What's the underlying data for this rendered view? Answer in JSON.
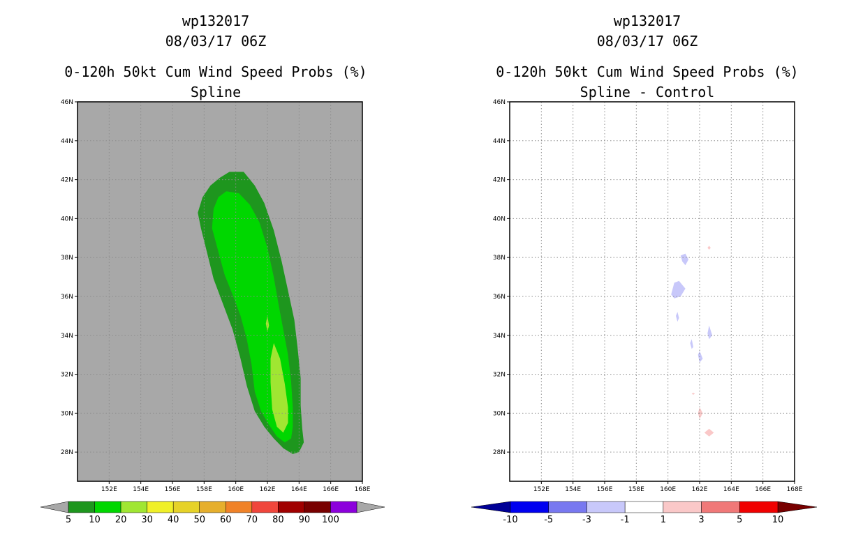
{
  "chart_data": [
    {
      "type": "heatmap",
      "storm_id": "wp132017",
      "datetime": "08/03/17 06Z",
      "title": "0-120h 50kt Cum Wind Speed Probs (%)",
      "subtitle": "Spline",
      "xlim": [
        150,
        168
      ],
      "ylim": [
        26.5,
        46
      ],
      "x_ticks": [
        {
          "value": 152,
          "label": "152E"
        },
        {
          "value": 154,
          "label": "154E"
        },
        {
          "value": 156,
          "label": "156E"
        },
        {
          "value": 158,
          "label": "158E"
        },
        {
          "value": 160,
          "label": "160E"
        },
        {
          "value": 162,
          "label": "162E"
        },
        {
          "value": 164,
          "label": "164E"
        },
        {
          "value": 166,
          "label": "166E"
        },
        {
          "value": 168,
          "label": "168E"
        }
      ],
      "y_ticks": [
        {
          "value": 28,
          "label": "28N"
        },
        {
          "value": 30,
          "label": "30N"
        },
        {
          "value": 32,
          "label": "32N"
        },
        {
          "value": 34,
          "label": "34N"
        },
        {
          "value": 36,
          "label": "36N"
        },
        {
          "value": 38,
          "label": "38N"
        },
        {
          "value": 40,
          "label": "40N"
        },
        {
          "value": 42,
          "label": "42N"
        },
        {
          "value": 44,
          "label": "44N"
        },
        {
          "value": 46,
          "label": "46N"
        }
      ],
      "background_color": "#a8a8a8",
      "regions": [
        {
          "level": "5-10",
          "color": "#1e961e",
          "points": [
            [
              159.6,
              42.4
            ],
            [
              160.5,
              42.4
            ],
            [
              161.2,
              41.7
            ],
            [
              161.8,
              40.8
            ],
            [
              162.4,
              39.4
            ],
            [
              162.9,
              37.8
            ],
            [
              163.3,
              36.3
            ],
            [
              163.7,
              34.8
            ],
            [
              163.9,
              33.4
            ],
            [
              164.1,
              31.8
            ],
            [
              164.1,
              30.4
            ],
            [
              164.2,
              29.2
            ],
            [
              164.3,
              28.5
            ],
            [
              164.0,
              28.0
            ],
            [
              163.6,
              27.9
            ],
            [
              163.0,
              28.2
            ],
            [
              162.4,
              28.7
            ],
            [
              161.8,
              29.3
            ],
            [
              161.2,
              30.1
            ],
            [
              160.7,
              31.4
            ],
            [
              160.3,
              32.8
            ],
            [
              159.8,
              34.3
            ],
            [
              159.2,
              35.6
            ],
            [
              158.6,
              36.9
            ],
            [
              158.2,
              38.2
            ],
            [
              157.8,
              39.5
            ],
            [
              157.6,
              40.3
            ],
            [
              157.9,
              41.1
            ],
            [
              158.4,
              41.7
            ],
            [
              159.0,
              42.1
            ]
          ]
        },
        {
          "level": "10-20",
          "color": "#00d700",
          "points": [
            [
              159.4,
              41.4
            ],
            [
              160.2,
              41.3
            ],
            [
              160.9,
              40.7
            ],
            [
              161.5,
              39.8
            ],
            [
              162.0,
              38.5
            ],
            [
              162.4,
              37.0
            ],
            [
              162.7,
              35.6
            ],
            [
              163.0,
              34.3
            ],
            [
              163.3,
              33.0
            ],
            [
              163.5,
              31.6
            ],
            [
              163.6,
              30.3
            ],
            [
              163.6,
              29.3
            ],
            [
              163.5,
              28.7
            ],
            [
              163.1,
              28.5
            ],
            [
              162.6,
              28.8
            ],
            [
              162.1,
              29.4
            ],
            [
              161.6,
              30.1
            ],
            [
              161.2,
              31.1
            ],
            [
              161.0,
              32.5
            ],
            [
              160.7,
              33.8
            ],
            [
              160.3,
              35.0
            ],
            [
              159.8,
              36.1
            ],
            [
              159.3,
              37.1
            ],
            [
              158.9,
              38.3
            ],
            [
              158.5,
              39.5
            ],
            [
              158.6,
              40.5
            ],
            [
              158.9,
              41.1
            ]
          ]
        },
        {
          "level": "20-30",
          "color": "#a0e632",
          "points": [
            [
              162.4,
              33.6
            ],
            [
              162.8,
              32.8
            ],
            [
              163.1,
              31.5
            ],
            [
              163.3,
              30.3
            ],
            [
              163.3,
              29.5
            ],
            [
              163.0,
              29.0
            ],
            [
              162.6,
              29.3
            ],
            [
              162.3,
              30.2
            ],
            [
              162.2,
              31.6
            ],
            [
              162.2,
              32.8
            ]
          ]
        },
        {
          "level": "20-30",
          "color": "#a0e632",
          "points": [
            [
              162.0,
              35.0
            ],
            [
              162.1,
              34.5
            ],
            [
              162.0,
              34.2
            ],
            [
              161.9,
              34.6
            ]
          ]
        }
      ],
      "colorbar": {
        "labels": [
          "5",
          "10",
          "20",
          "30",
          "40",
          "50",
          "60",
          "70",
          "80",
          "90",
          "100"
        ],
        "colors": [
          "#1e961e",
          "#00d700",
          "#a0e632",
          "#f0f028",
          "#e6d228",
          "#e6af2d",
          "#f08228",
          "#f0463c",
          "#a00000",
          "#780000",
          "#8c00dc"
        ],
        "end_color": "#a8a8a8"
      }
    },
    {
      "type": "heatmap",
      "storm_id": "wp132017",
      "datetime": "08/03/17 06Z",
      "title": "0-120h 50kt Cum Wind Speed Probs (%)",
      "subtitle": "Spline - Control",
      "xlim": [
        150,
        168
      ],
      "ylim": [
        26.5,
        46
      ],
      "x_ticks": [
        {
          "value": 152,
          "label": "152E"
        },
        {
          "value": 154,
          "label": "154E"
        },
        {
          "value": 156,
          "label": "156E"
        },
        {
          "value": 158,
          "label": "158E"
        },
        {
          "value": 160,
          "label": "160E"
        },
        {
          "value": 162,
          "label": "162E"
        },
        {
          "value": 164,
          "label": "164E"
        },
        {
          "value": 166,
          "label": "166E"
        },
        {
          "value": 168,
          "label": "168E"
        }
      ],
      "y_ticks": [
        {
          "value": 28,
          "label": "28N"
        },
        {
          "value": 30,
          "label": "30N"
        },
        {
          "value": 32,
          "label": "32N"
        },
        {
          "value": 34,
          "label": "34N"
        },
        {
          "value": 36,
          "label": "36N"
        },
        {
          "value": 38,
          "label": "38N"
        },
        {
          "value": 40,
          "label": "40N"
        },
        {
          "value": 42,
          "label": "42N"
        },
        {
          "value": 44,
          "label": "44N"
        },
        {
          "value": 46,
          "label": "46N"
        }
      ],
      "background_color": "#ffffff",
      "grid": true,
      "regions": [
        {
          "level": "-3 to -1",
          "color": "#c8c8fa",
          "points": [
            [
              160.8,
              38.1
            ],
            [
              161.1,
              38.2
            ],
            [
              161.3,
              37.9
            ],
            [
              161.1,
              37.6
            ],
            [
              160.9,
              37.8
            ]
          ]
        },
        {
          "level": "-3 to -1",
          "color": "#c8c8fa",
          "points": [
            [
              160.2,
              36.1
            ],
            [
              160.4,
              36.7
            ],
            [
              160.7,
              36.8
            ],
            [
              161.1,
              36.4
            ],
            [
              160.8,
              36.0
            ],
            [
              160.4,
              35.9
            ]
          ]
        },
        {
          "level": "-3 to -1",
          "color": "#c8c8fa",
          "points": [
            [
              160.5,
              35.0
            ],
            [
              160.6,
              35.2
            ],
            [
              160.7,
              34.9
            ],
            [
              160.6,
              34.7
            ]
          ]
        },
        {
          "level": "-3 to -1",
          "color": "#c8c8fa",
          "points": [
            [
              162.5,
              34.1
            ],
            [
              162.6,
              34.5
            ],
            [
              162.8,
              34.0
            ],
            [
              162.6,
              33.8
            ]
          ]
        },
        {
          "level": "-3 to -1",
          "color": "#c8c8fa",
          "points": [
            [
              161.4,
              33.6
            ],
            [
              161.5,
              33.8
            ],
            [
              161.6,
              33.4
            ],
            [
              161.5,
              33.3
            ]
          ]
        },
        {
          "level": "-3 to -1",
          "color": "#c8c8fa",
          "points": [
            [
              161.9,
              33.0
            ],
            [
              162.0,
              33.2
            ],
            [
              162.2,
              32.8
            ],
            [
              162.0,
              32.6
            ]
          ]
        },
        {
          "level": "1 to 3",
          "color": "#fac8c8",
          "points": [
            [
              162.6,
              38.6
            ],
            [
              162.7,
              38.5
            ],
            [
              162.6,
              38.4
            ],
            [
              162.5,
              38.5
            ]
          ]
        },
        {
          "level": "1 to 3",
          "color": "#fac8c8",
          "points": [
            [
              161.5,
              31.0
            ],
            [
              161.6,
              31.05
            ],
            [
              161.7,
              31.0
            ],
            [
              161.6,
              30.95
            ]
          ]
        },
        {
          "level": "1 to 3",
          "color": "#fac8c8",
          "points": [
            [
              162.0,
              30.3
            ],
            [
              162.2,
              30.0
            ],
            [
              162.0,
              29.7
            ],
            [
              161.9,
              30.0
            ]
          ]
        },
        {
          "level": "1 to 3",
          "color": "#fac8c8",
          "points": [
            [
              162.3,
              29.0
            ],
            [
              162.6,
              29.2
            ],
            [
              162.9,
              29.0
            ],
            [
              162.6,
              28.8
            ]
          ]
        }
      ],
      "colorbar": {
        "labels": [
          "-10",
          "-5",
          "-3",
          "-1",
          "1",
          "3",
          "5",
          "10"
        ],
        "colors": [
          "#0000f0",
          "#7878f0",
          "#c8c8fa",
          "#ffffff",
          "#fac8c8",
          "#f07878",
          "#f00000"
        ],
        "start_color": "#000096",
        "end_color": "#780000"
      }
    }
  ]
}
